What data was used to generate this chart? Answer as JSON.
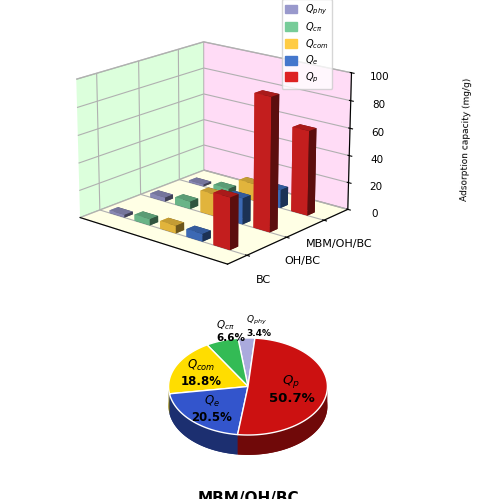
{
  "bar_groups": [
    "BC",
    "OH/BC",
    "MBM/OH/BC"
  ],
  "mechanisms": [
    "Q_phy",
    "Q_cn",
    "Q_com",
    "Q_e",
    "Q_p"
  ],
  "bar_colors": [
    "#9999cc",
    "#77cc99",
    "#ffcc44",
    "#4477cc",
    "#dd2222"
  ],
  "bar_values": [
    [
      2.0,
      4.5,
      5.5,
      5.5,
      37.0
    ],
    [
      3.0,
      5.5,
      16.0,
      19.0,
      96.0
    ],
    [
      1.5,
      3.5,
      12.5,
      13.5,
      62.0
    ]
  ],
  "ylim": [
    0,
    100
  ],
  "yticks": [
    0,
    20,
    40,
    60,
    80,
    100
  ],
  "ylabel": "Adsorption capacity (mg/g)",
  "legend_labels": [
    "$Q_{phy}$",
    "$Q_{c\\pi}$",
    "$Q_{com}$",
    "$Q_e$",
    "$Q_p$"
  ],
  "pie_values": [
    3.4,
    6.6,
    18.8,
    20.5,
    50.7
  ],
  "pie_colors": [
    "#aaaadd",
    "#33bb55",
    "#ffdd00",
    "#3355cc",
    "#cc1111"
  ],
  "pie_title": "MBM/OH/BC",
  "bg_left_color": "#ffbbee",
  "bg_floor_color": "#ffffcc",
  "bg_back_color": "#bbffbb"
}
